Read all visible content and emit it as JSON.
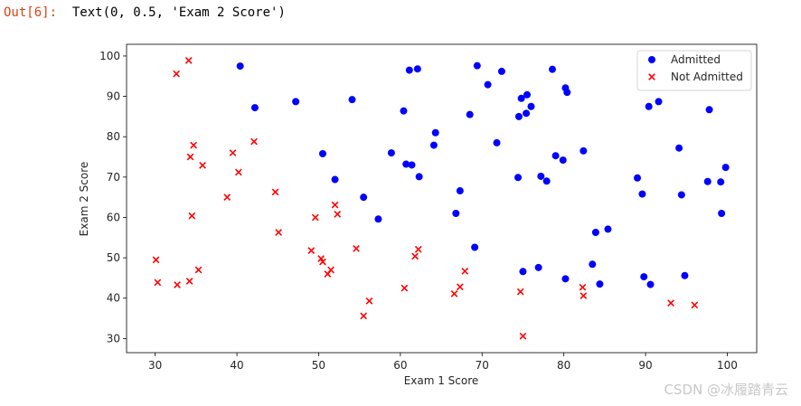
{
  "cell": {
    "out_prompt": "Out[6]:",
    "out_text": "Text(0, 0.5, 'Exam 2 Score')"
  },
  "watermark": "CSDN @冰履踏青云",
  "chart_data": {
    "type": "scatter",
    "xlabel": "Exam 1 Score",
    "ylabel": "Exam 2 Score",
    "xlim": [
      26.5,
      103.6
    ],
    "ylim": [
      26.5,
      102.9
    ],
    "xticks": [
      30,
      40,
      50,
      60,
      70,
      80,
      90,
      100
    ],
    "yticks": [
      30,
      40,
      50,
      60,
      70,
      80,
      90,
      100
    ],
    "grid": false,
    "legend_position": "top-right",
    "series": [
      {
        "name": "Admitted",
        "marker": "circle",
        "color": "#0000ff",
        "points": [
          [
            40.4,
            97.5
          ],
          [
            42.2,
            87.2
          ],
          [
            47.2,
            88.7
          ],
          [
            50.5,
            75.8
          ],
          [
            52.0,
            69.4
          ],
          [
            54.1,
            89.2
          ],
          [
            55.5,
            65.0
          ],
          [
            57.3,
            59.6
          ],
          [
            58.9,
            76.0
          ],
          [
            60.4,
            86.4
          ],
          [
            60.7,
            73.2
          ],
          [
            61.1,
            96.5
          ],
          [
            61.4,
            73.0
          ],
          [
            62.1,
            96.8
          ],
          [
            62.3,
            70.1
          ],
          [
            64.1,
            77.9
          ],
          [
            64.3,
            81.0
          ],
          [
            66.8,
            61.0
          ],
          [
            67.3,
            66.6
          ],
          [
            68.5,
            85.5
          ],
          [
            69.1,
            52.6
          ],
          [
            69.4,
            97.6
          ],
          [
            70.7,
            92.9
          ],
          [
            71.8,
            78.5
          ],
          [
            72.4,
            96.2
          ],
          [
            74.4,
            69.9
          ],
          [
            74.5,
            85.0
          ],
          [
            74.8,
            89.5
          ],
          [
            75.0,
            46.6
          ],
          [
            75.4,
            85.8
          ],
          [
            75.5,
            90.4
          ],
          [
            76.0,
            87.5
          ],
          [
            76.9,
            47.6
          ],
          [
            77.2,
            70.2
          ],
          [
            77.9,
            69.0
          ],
          [
            78.6,
            96.7
          ],
          [
            79.0,
            75.3
          ],
          [
            79.9,
            74.2
          ],
          [
            80.2,
            44.8
          ],
          [
            80.2,
            92.1
          ],
          [
            80.4,
            91.0
          ],
          [
            82.4,
            76.5
          ],
          [
            83.5,
            48.4
          ],
          [
            83.9,
            56.3
          ],
          [
            84.4,
            43.5
          ],
          [
            85.4,
            57.1
          ],
          [
            89.0,
            69.8
          ],
          [
            89.6,
            65.8
          ],
          [
            89.8,
            45.3
          ],
          [
            90.4,
            87.5
          ],
          [
            90.6,
            43.4
          ],
          [
            91.6,
            88.7
          ],
          [
            94.1,
            77.2
          ],
          [
            94.4,
            65.6
          ],
          [
            94.8,
            45.6
          ],
          [
            97.6,
            68.9
          ],
          [
            97.8,
            86.7
          ],
          [
            99.2,
            68.8
          ],
          [
            99.3,
            61.0
          ],
          [
            99.8,
            72.4
          ]
        ]
      },
      {
        "name": "Not Admitted",
        "marker": "x",
        "color": "#ff0000",
        "points": [
          [
            30.1,
            49.5
          ],
          [
            30.3,
            43.9
          ],
          [
            32.6,
            95.6
          ],
          [
            32.7,
            43.3
          ],
          [
            34.1,
            98.9
          ],
          [
            34.2,
            44.2
          ],
          [
            34.3,
            75.0
          ],
          [
            34.5,
            60.4
          ],
          [
            34.7,
            77.9
          ],
          [
            35.3,
            47.0
          ],
          [
            35.8,
            72.9
          ],
          [
            38.8,
            65.0
          ],
          [
            39.5,
            76.0
          ],
          [
            40.2,
            71.2
          ],
          [
            42.1,
            78.8
          ],
          [
            44.7,
            66.3
          ],
          [
            45.1,
            56.3
          ],
          [
            49.1,
            51.8
          ],
          [
            49.6,
            60.0
          ],
          [
            50.3,
            49.8
          ],
          [
            50.5,
            49.0
          ],
          [
            51.1,
            46.0
          ],
          [
            51.5,
            47.0
          ],
          [
            52.0,
            63.1
          ],
          [
            52.3,
            60.8
          ],
          [
            54.6,
            52.3
          ],
          [
            55.5,
            35.6
          ],
          [
            56.2,
            39.3
          ],
          [
            60.5,
            42.5
          ],
          [
            61.8,
            50.4
          ],
          [
            62.2,
            52.1
          ],
          [
            66.6,
            41.1
          ],
          [
            67.3,
            42.8
          ],
          [
            67.9,
            46.7
          ],
          [
            74.7,
            41.6
          ],
          [
            75.0,
            30.6
          ],
          [
            82.3,
            42.7
          ],
          [
            82.4,
            40.6
          ],
          [
            93.1,
            38.8
          ],
          [
            96.0,
            38.3
          ]
        ]
      }
    ]
  }
}
